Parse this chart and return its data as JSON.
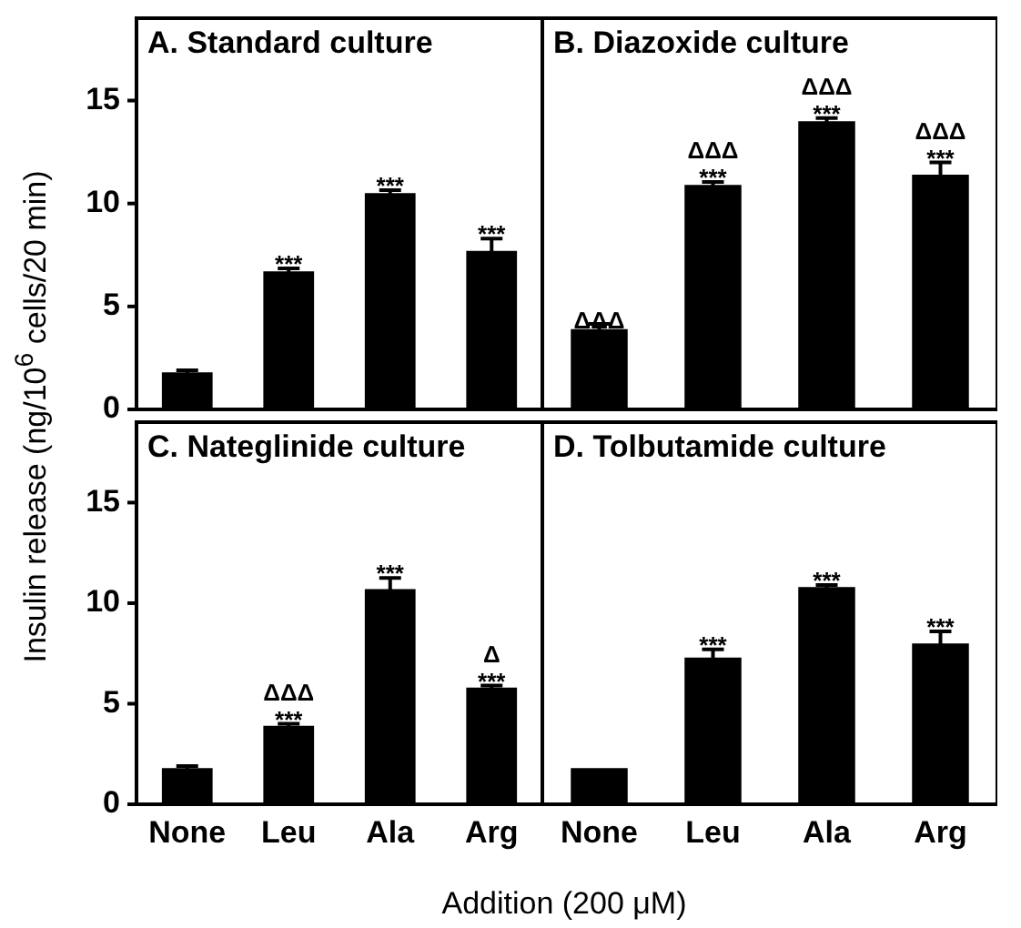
{
  "chart_data": [
    {
      "type": "bar",
      "title": "A. Standard culture",
      "ylabel": "Insulin release (ng/10$^{6}$ cells/20 min)",
      "categories": [
        "None",
        "Leu",
        "Ala",
        "Arg"
      ],
      "values": [
        1.8,
        6.7,
        10.5,
        7.7
      ],
      "errors": [
        0.1,
        0.15,
        0.15,
        0.6
      ],
      "color": "#000000",
      "ylim": [
        0,
        19
      ],
      "yticks": [
        0,
        5,
        10,
        15
      ],
      "tick_labels": "y",
      "annotations": [
        {
          "text": "***",
          "x": "Leu",
          "y": 6.85
        },
        {
          "text": "***",
          "x": "Ala",
          "y": 10.65
        },
        {
          "text": "***",
          "x": "Arg",
          "y": 8.3
        }
      ]
    },
    {
      "type": "bar",
      "title": "B. Diazoxide culture",
      "categories": [
        "None",
        "Leu",
        "Ala",
        "Arg"
      ],
      "values": [
        3.9,
        10.9,
        14.0,
        11.4
      ],
      "errors": [
        0.25,
        0.15,
        0.15,
        0.6
      ],
      "color": "#000000",
      "ylim": [
        0,
        19
      ],
      "yticks": [
        0,
        5,
        10,
        15
      ],
      "tick_labels": false,
      "annotations": [
        {
          "text": "ΔΔΔ",
          "x": "None",
          "y": 4.1
        },
        {
          "text": "***",
          "x": "Leu",
          "y": 11.05
        },
        {
          "text": "ΔΔΔ",
          "x": "Leu",
          "y": 11.05
        },
        {
          "text": "***",
          "x": "Ala",
          "y": 14.15
        },
        {
          "text": "ΔΔΔ",
          "x": "Ala",
          "y": 14.15
        },
        {
          "text": "***",
          "x": "Arg",
          "y": 12.0
        },
        {
          "text": "ΔΔΔ",
          "x": "Arg",
          "y": 12.0
        }
      ]
    },
    {
      "type": "bar",
      "title": "C. Nateglinide culture",
      "xlabel": "Addition (200 μM)",
      "categories": [
        "None",
        "Leu",
        "Ala",
        "Arg"
      ],
      "values": [
        1.8,
        3.9,
        10.7,
        5.8
      ],
      "errors": [
        0.1,
        0.1,
        0.55,
        0.1
      ],
      "color": "#000000",
      "ylim": [
        0,
        19
      ],
      "yticks": [
        0,
        5,
        10,
        15
      ],
      "annotations": [
        {
          "text": "***",
          "x": "Leu",
          "y": 4.0
        },
        {
          "text": "ΔΔΔ",
          "x": "Leu",
          "y": 4.0
        },
        {
          "text": "***",
          "x": "Ala",
          "y": 11.25
        },
        {
          "text": "***",
          "x": "Arg",
          "y": 5.9
        },
        {
          "text": "Δ",
          "x": "Arg",
          "y": 5.9
        }
      ]
    },
    {
      "type": "bar",
      "title": "D. Tolbutamide culture",
      "categories": [
        "None",
        "Leu",
        "Ala",
        "Arg"
      ],
      "values": [
        1.8,
        7.3,
        10.8,
        8.0
      ],
      "errors": [
        null,
        0.4,
        0.1,
        0.6
      ],
      "color": "#000000",
      "ylim": [
        0,
        19
      ],
      "yticks": [
        0,
        5,
        10,
        15
      ],
      "tick_labels": "x",
      "annotations": [
        {
          "text": "***",
          "x": "Leu",
          "y": 7.7
        },
        {
          "text": "***",
          "x": "Ala",
          "y": 10.9
        },
        {
          "text": "***",
          "x": "Arg",
          "y": 8.6
        }
      ]
    }
  ]
}
